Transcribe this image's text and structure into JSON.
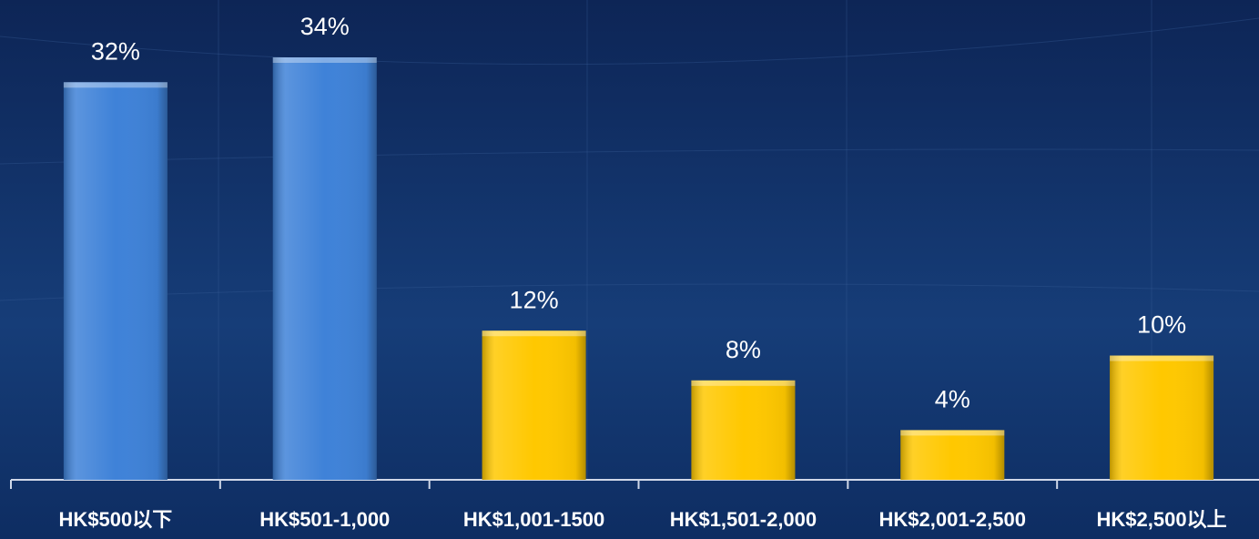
{
  "chart_data": {
    "type": "bar",
    "categories": [
      "HK$500以下",
      "HK$501-1,000",
      "HK$1,001-1500",
      "HK$1,501-2,000",
      "HK$2,001-2,500",
      "HK$2,500以上"
    ],
    "values": [
      32,
      34,
      12,
      8,
      4,
      10
    ],
    "value_labels": [
      "32%",
      "34%",
      "12%",
      "8%",
      "4%",
      "10%"
    ],
    "colors": [
      "#3f82d8",
      "#3f82d8",
      "#ffc800",
      "#ffc800",
      "#ffc800",
      "#ffc800"
    ]
  }
}
